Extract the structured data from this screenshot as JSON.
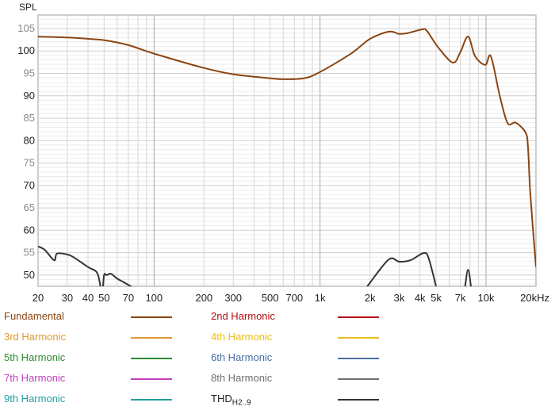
{
  "chart_data": {
    "type": "line",
    "ylabel": "SPL",
    "xscale": "log",
    "xlim": [
      20,
      20000
    ],
    "ylim": [
      47.5,
      108
    ],
    "grid": true,
    "x_ticks": [
      {
        "v": 20,
        "label": "20"
      },
      {
        "v": 30,
        "label": "30"
      },
      {
        "v": 40,
        "label": "40"
      },
      {
        "v": 50,
        "label": "50"
      },
      {
        "v": 70,
        "label": "70"
      },
      {
        "v": 100,
        "label": "100"
      },
      {
        "v": 200,
        "label": "200"
      },
      {
        "v": 300,
        "label": "300"
      },
      {
        "v": 500,
        "label": "500"
      },
      {
        "v": 700,
        "label": "700"
      },
      {
        "v": 1000,
        "label": "1k"
      },
      {
        "v": 2000,
        "label": "2k"
      },
      {
        "v": 3000,
        "label": "3k"
      },
      {
        "v": 4000,
        "label": "4k"
      },
      {
        "v": 5000,
        "label": "5k"
      },
      {
        "v": 7000,
        "label": "7k"
      },
      {
        "v": 10000,
        "label": "10k"
      },
      {
        "v": 20000,
        "label": "20kHz"
      }
    ],
    "y_ticks": [
      {
        "v": 105,
        "label": "105"
      },
      {
        "v": 100,
        "label": "100"
      },
      {
        "v": 95,
        "label": "95"
      },
      {
        "v": 90,
        "label": "90"
      },
      {
        "v": 85,
        "label": "85"
      },
      {
        "v": 80,
        "label": "80"
      },
      {
        "v": 75,
        "label": "75"
      },
      {
        "v": 70,
        "label": "70"
      },
      {
        "v": 65,
        "label": "65"
      },
      {
        "v": 60,
        "label": "60"
      },
      {
        "v": 55,
        "label": "55"
      },
      {
        "v": 50,
        "label": "50"
      }
    ],
    "series": [
      {
        "name": "Fundamental",
        "color": "#8b4513",
        "points": [
          [
            20,
            103.2
          ],
          [
            30,
            103
          ],
          [
            40,
            102.7
          ],
          [
            50,
            102.4
          ],
          [
            70,
            101.3
          ],
          [
            100,
            99.4
          ],
          [
            200,
            96.2
          ],
          [
            300,
            94.8
          ],
          [
            500,
            93.9
          ],
          [
            600,
            93.7
          ],
          [
            800,
            93.9
          ],
          [
            1000,
            95.3
          ],
          [
            1550,
            99.5
          ],
          [
            2000,
            102.7
          ],
          [
            2600,
            104.3
          ],
          [
            3000,
            103.8
          ],
          [
            3400,
            104
          ],
          [
            4100,
            104.8
          ],
          [
            4400,
            104.5
          ],
          [
            5100,
            101
          ],
          [
            6300,
            97.4
          ],
          [
            7000,
            99.7
          ],
          [
            7800,
            103.2
          ],
          [
            8600,
            98.8
          ],
          [
            9900,
            96.9
          ],
          [
            10700,
            98.8
          ],
          [
            12100,
            90
          ],
          [
            13500,
            83.9
          ],
          [
            15100,
            84
          ],
          [
            17300,
            81.8
          ],
          [
            17900,
            78.6
          ],
          [
            18500,
            68
          ],
          [
            20000,
            51.8
          ]
        ]
      },
      {
        "name": "2nd Harmonic",
        "color": "#b01010",
        "points": []
      },
      {
        "name": "3rd Harmonic",
        "color": "#e09a30",
        "points": []
      },
      {
        "name": "4th Harmonic",
        "color": "#e8c020",
        "points": []
      },
      {
        "name": "5th Harmonic",
        "color": "#2e8b2e",
        "points": []
      },
      {
        "name": "6th Harmonic",
        "color": "#4a6fa5",
        "points": []
      },
      {
        "name": "7th Harmonic",
        "color": "#c040c0",
        "points": []
      },
      {
        "name": "8th Harmonic",
        "color": "#707070",
        "points": []
      },
      {
        "name": "9th Harmonic",
        "color": "#20a0a0",
        "points": []
      },
      {
        "name": "THD",
        "name_sub": "H2..9",
        "color": "#333333",
        "segments": [
          [
            [
              20,
              56.4
            ],
            [
              22,
              55.6
            ],
            [
              25,
              53.3
            ],
            [
              26,
              54.8
            ],
            [
              30,
              54.6
            ],
            [
              33,
              53.9
            ],
            [
              40,
              51.8
            ],
            [
              45,
              50.7
            ],
            [
              47,
              48.5
            ],
            [
              48,
              46
            ]
          ],
          [
            [
              49,
              46
            ],
            [
              50,
              50
            ],
            [
              52,
              50
            ],
            [
              55,
              50.3
            ],
            [
              60,
              49.2
            ],
            [
              65,
              48.5
            ],
            [
              70,
              47.8
            ],
            [
              75,
              47.2
            ]
          ],
          [
            [
              1850,
              46.5
            ],
            [
              2000,
              48.3
            ],
            [
              2600,
              53.5
            ],
            [
              3000,
              53
            ],
            [
              3500,
              53.3
            ],
            [
              4200,
              54.9
            ],
            [
              4500,
              53.9
            ],
            [
              5000,
              47.5
            ]
          ],
          [
            [
              7400,
              46
            ],
            [
              7800,
              51.2
            ],
            [
              8200,
              46
            ]
          ]
        ]
      }
    ]
  }
}
